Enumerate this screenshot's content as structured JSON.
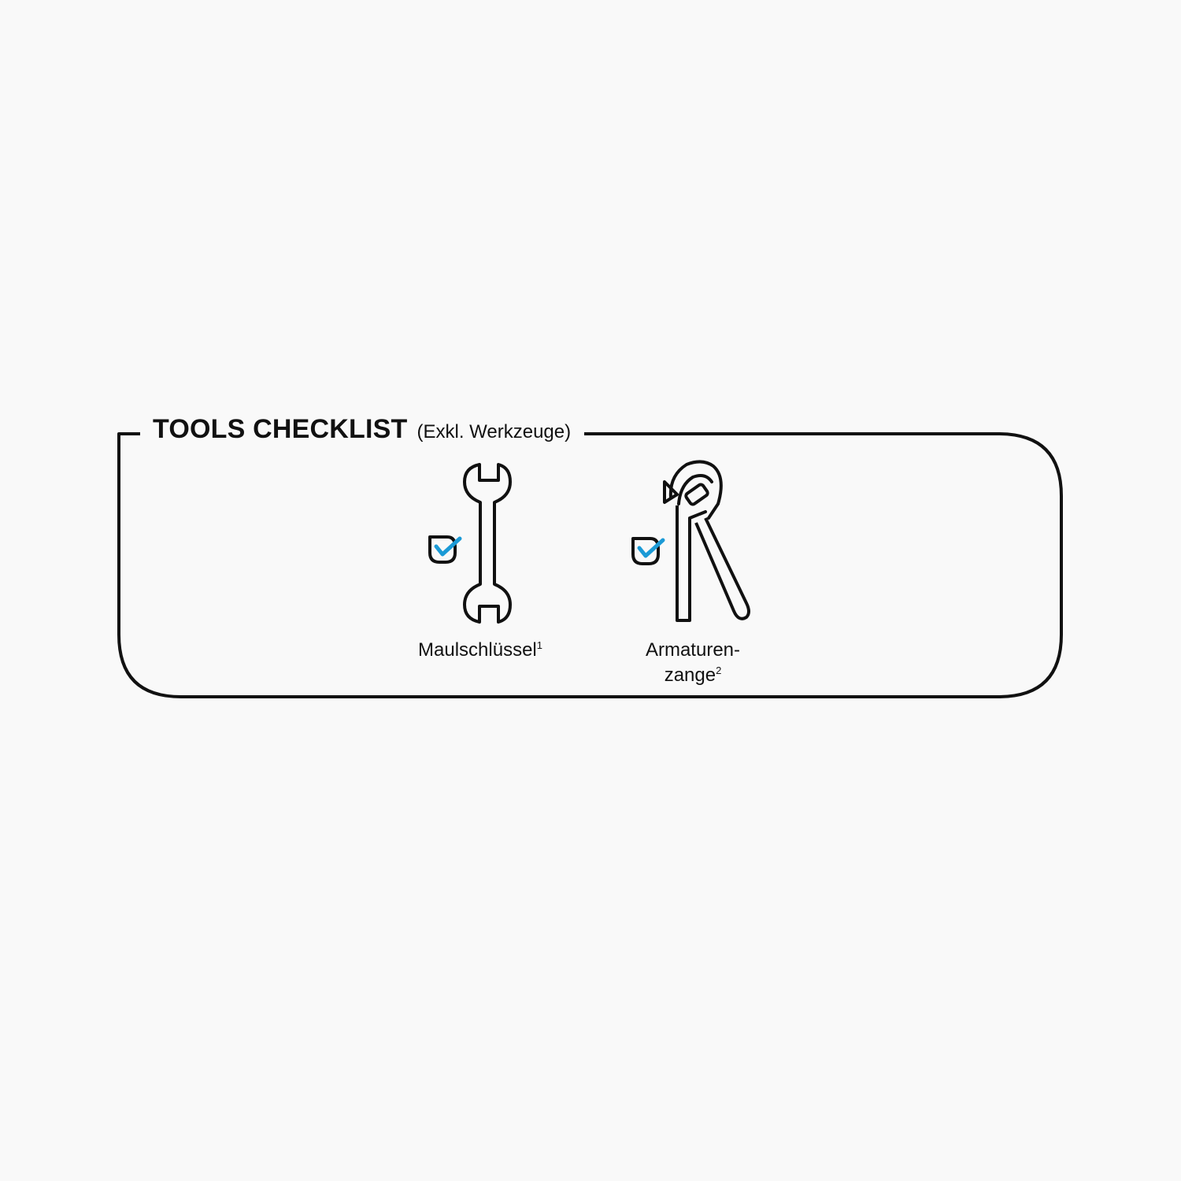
{
  "header": {
    "title": "TOOLS CHECKLIST",
    "subtitle": "(Exkl. Werkzeuge)"
  },
  "tools": [
    {
      "label": "Maulschlüssel",
      "footnote": "1",
      "icon": "open-end-wrench-icon",
      "checked": true
    },
    {
      "label_line1": "Armaturen-",
      "label_line2": "zange",
      "footnote": "2",
      "icon": "water-pump-pliers-icon",
      "checked": true
    }
  ],
  "colors": {
    "outline": "#111111",
    "check": "#1b9ad6",
    "background": "#f9f9f9"
  }
}
